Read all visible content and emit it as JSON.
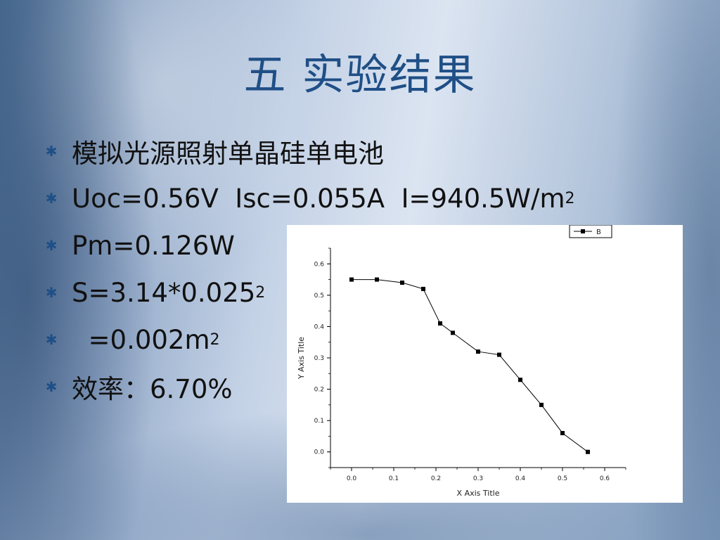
{
  "slide": {
    "title": "五 实验结果",
    "bullets": [
      {
        "text": "模拟光源照射单晶硅单电池",
        "sup": ""
      },
      {
        "text": "Uoc=0.56V  Isc=0.055A  I=940.5W/m",
        "sup": "2"
      },
      {
        "text": "Pm=0.126W",
        "sup": ""
      },
      {
        "text": "S=3.14*0.025",
        "sup": "2"
      },
      {
        "text": "  =0.002m",
        "sup": "2"
      },
      {
        "text": "效率：6.70%",
        "sup": ""
      }
    ],
    "bullet_icon": "asterisk-icon"
  },
  "chart_data": {
    "type": "line",
    "title": "",
    "xlabel": "X Axis Title",
    "ylabel": "Y Axis Title",
    "xlim": [
      -0.05,
      0.65
    ],
    "ylim": [
      -0.05,
      0.65
    ],
    "xticks": [
      "0.0",
      "0.1",
      "0.2",
      "0.3",
      "0.4",
      "0.5",
      "0.6"
    ],
    "yticks": [
      "0.0",
      "0.1",
      "0.2",
      "0.3",
      "0.4",
      "0.5",
      "0.6"
    ],
    "legend_position": "top-right",
    "grid": false,
    "series": [
      {
        "name": "B",
        "marker": "square",
        "x": [
          0.0,
          0.06,
          0.12,
          0.17,
          0.21,
          0.24,
          0.3,
          0.35,
          0.4,
          0.45,
          0.5,
          0.56
        ],
        "y": [
          0.55,
          0.55,
          0.54,
          0.52,
          0.41,
          0.38,
          0.32,
          0.31,
          0.23,
          0.15,
          0.06,
          0.0
        ]
      }
    ]
  }
}
